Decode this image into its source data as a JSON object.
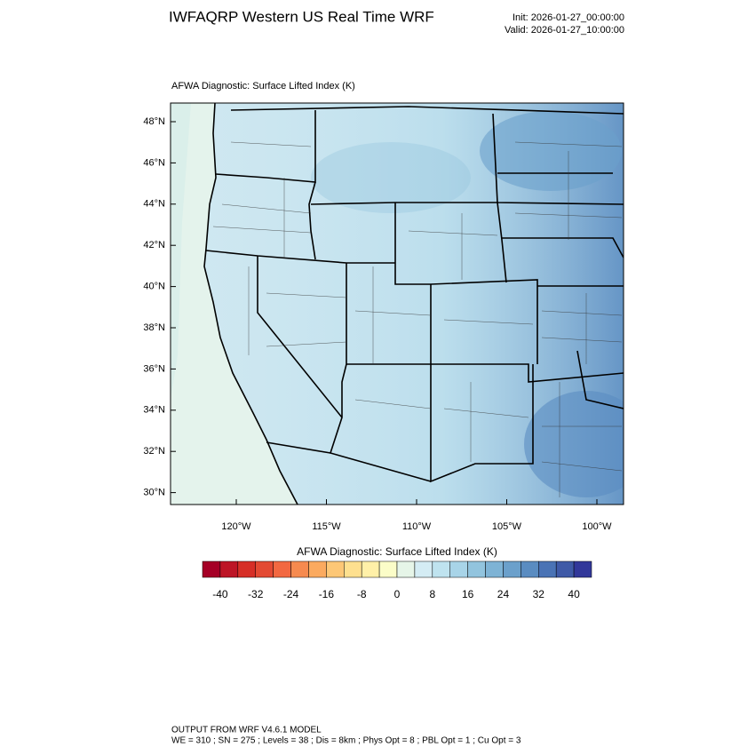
{
  "header": {
    "title": "IWFAQRP Western US Real Time WRF",
    "init": "Init: 2026-01-27_00:00:00",
    "valid": "Valid: 2026-01-27_10:00:00"
  },
  "map": {
    "subtitle": "AFWA Diagnostic: Surface Lifted Index   (K)",
    "lat_ticks": [
      {
        "value": 48,
        "label": "48°N"
      },
      {
        "value": 46,
        "label": "46°N"
      },
      {
        "value": 44,
        "label": "44°N"
      },
      {
        "value": 42,
        "label": "42°N"
      },
      {
        "value": 40,
        "label": "40°N"
      },
      {
        "value": 38,
        "label": "38°N"
      },
      {
        "value": 36,
        "label": "36°N"
      },
      {
        "value": 34,
        "label": "34°N"
      },
      {
        "value": 32,
        "label": "32°N"
      },
      {
        "value": 30,
        "label": "30°N"
      }
    ],
    "lon_ticks": [
      {
        "value": -120,
        "label": "120°W"
      },
      {
        "value": -115,
        "label": "115°W"
      },
      {
        "value": -110,
        "label": "110°W"
      },
      {
        "value": -105,
        "label": "105°W"
      },
      {
        "value": -100,
        "label": "100°W"
      }
    ]
  },
  "colorbar": {
    "title": "AFWA Diagnostic: Surface Lifted Index  (K)",
    "range": [
      -44,
      44
    ],
    "colors": [
      "#a50026",
      "#bd1526",
      "#d62f27",
      "#e34a33",
      "#f26841",
      "#f68a4f",
      "#fbaa5f",
      "#fdc776",
      "#fee08f",
      "#fff0a8",
      "#fbfdc8",
      "#e6f5e8",
      "#d4ecf4",
      "#bfe3ef",
      "#a8d4e8",
      "#92c4de",
      "#7eb3d5",
      "#6ba0cb",
      "#5a8cc1",
      "#4a73b5",
      "#3f5aa7",
      "#32389a"
    ],
    "ticks": [
      -40,
      -32,
      -24,
      -16,
      -8,
      0,
      8,
      16,
      24,
      32,
      40
    ]
  },
  "footer": {
    "line1": "OUTPUT FROM WRF V4.6.1 MODEL",
    "line2": "WE = 310 ; SN = 275 ; Levels = 38 ; Dis = 8km ; Phys Opt = 8 ; PBL Opt = 1 ; Cu Opt = 3"
  }
}
